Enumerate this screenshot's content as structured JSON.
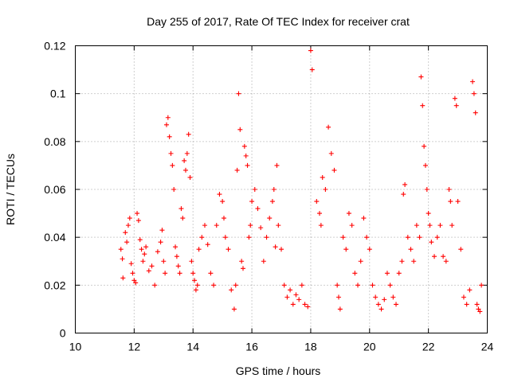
{
  "chart_data": {
    "type": "scatter",
    "title": "Day 255 of 2017, Rate Of TEC Index for receiver crat",
    "xlabel": "GPS time / hours",
    "ylabel": "ROTI / TECUs",
    "xlim": [
      10,
      24
    ],
    "ylim": [
      0,
      0.12
    ],
    "xticks": [
      10,
      12,
      14,
      16,
      18,
      20,
      22,
      24
    ],
    "yticks": [
      0,
      0.02,
      0.04,
      0.06,
      0.08,
      0.1,
      0.12
    ],
    "xtick_labels": [
      "10",
      "12",
      "14",
      "16",
      "18",
      "20",
      "22",
      "24"
    ],
    "ytick_labels": [
      "0",
      "0.02",
      "0.04",
      "0.06",
      "0.08",
      "0.1",
      "0.12"
    ],
    "grid": true,
    "marker": "+",
    "color": "#ff0000",
    "series": [
      {
        "points": [
          [
            11.55,
            0.035
          ],
          [
            11.6,
            0.031
          ],
          [
            11.62,
            0.023
          ],
          [
            11.7,
            0.042
          ],
          [
            11.75,
            0.038
          ],
          [
            11.8,
            0.045
          ],
          [
            11.85,
            0.048
          ],
          [
            11.9,
            0.029
          ],
          [
            11.95,
            0.025
          ],
          [
            12.0,
            0.022
          ],
          [
            12.05,
            0.021
          ],
          [
            12.1,
            0.05
          ],
          [
            12.15,
            0.047
          ],
          [
            12.2,
            0.039
          ],
          [
            12.25,
            0.035
          ],
          [
            12.3,
            0.03
          ],
          [
            12.35,
            0.033
          ],
          [
            12.4,
            0.036
          ],
          [
            12.5,
            0.026
          ],
          [
            12.6,
            0.028
          ],
          [
            12.7,
            0.02
          ],
          [
            12.8,
            0.034
          ],
          [
            12.9,
            0.038
          ],
          [
            12.95,
            0.043
          ],
          [
            13.0,
            0.03
          ],
          [
            13.05,
            0.025
          ],
          [
            13.1,
            0.087
          ],
          [
            13.15,
            0.09
          ],
          [
            13.2,
            0.082
          ],
          [
            13.25,
            0.075
          ],
          [
            13.3,
            0.07
          ],
          [
            13.35,
            0.06
          ],
          [
            13.4,
            0.036
          ],
          [
            13.45,
            0.032
          ],
          [
            13.5,
            0.028
          ],
          [
            13.55,
            0.025
          ],
          [
            13.6,
            0.052
          ],
          [
            13.65,
            0.048
          ],
          [
            13.7,
            0.072
          ],
          [
            13.75,
            0.068
          ],
          [
            13.8,
            0.075
          ],
          [
            13.85,
            0.083
          ],
          [
            13.9,
            0.065
          ],
          [
            13.95,
            0.03
          ],
          [
            14.0,
            0.025
          ],
          [
            14.05,
            0.022
          ],
          [
            14.1,
            0.018
          ],
          [
            14.15,
            0.02
          ],
          [
            14.2,
            0.035
          ],
          [
            14.3,
            0.04
          ],
          [
            14.4,
            0.045
          ],
          [
            14.5,
            0.037
          ],
          [
            14.6,
            0.025
          ],
          [
            14.7,
            0.02
          ],
          [
            14.8,
            0.045
          ],
          [
            14.9,
            0.058
          ],
          [
            15.0,
            0.055
          ],
          [
            15.05,
            0.048
          ],
          [
            15.1,
            0.04
          ],
          [
            15.2,
            0.035
          ],
          [
            15.3,
            0.018
          ],
          [
            15.4,
            0.01
          ],
          [
            15.45,
            0.02
          ],
          [
            15.5,
            0.068
          ],
          [
            15.55,
            0.1
          ],
          [
            15.6,
            0.085
          ],
          [
            15.65,
            0.03
          ],
          [
            15.7,
            0.027
          ],
          [
            15.75,
            0.078
          ],
          [
            15.8,
            0.074
          ],
          [
            15.85,
            0.07
          ],
          [
            15.9,
            0.04
          ],
          [
            15.95,
            0.045
          ],
          [
            16.0,
            0.055
          ],
          [
            16.1,
            0.06
          ],
          [
            16.2,
            0.052
          ],
          [
            16.3,
            0.044
          ],
          [
            16.4,
            0.03
          ],
          [
            16.5,
            0.04
          ],
          [
            16.6,
            0.048
          ],
          [
            16.7,
            0.055
          ],
          [
            16.75,
            0.06
          ],
          [
            16.8,
            0.036
          ],
          [
            16.85,
            0.07
          ],
          [
            16.9,
            0.045
          ],
          [
            17.0,
            0.035
          ],
          [
            17.1,
            0.02
          ],
          [
            17.2,
            0.015
          ],
          [
            17.3,
            0.018
          ],
          [
            17.4,
            0.012
          ],
          [
            17.5,
            0.016
          ],
          [
            17.6,
            0.014
          ],
          [
            17.7,
            0.02
          ],
          [
            17.8,
            0.012
          ],
          [
            17.9,
            0.011
          ],
          [
            18.0,
            0.118
          ],
          [
            18.05,
            0.11
          ],
          [
            18.2,
            0.055
          ],
          [
            18.3,
            0.05
          ],
          [
            18.35,
            0.045
          ],
          [
            18.4,
            0.065
          ],
          [
            18.5,
            0.06
          ],
          [
            18.6,
            0.086
          ],
          [
            18.7,
            0.075
          ],
          [
            18.8,
            0.068
          ],
          [
            18.9,
            0.02
          ],
          [
            18.95,
            0.015
          ],
          [
            19.0,
            0.01
          ],
          [
            19.1,
            0.04
          ],
          [
            19.2,
            0.035
          ],
          [
            19.3,
            0.05
          ],
          [
            19.4,
            0.045
          ],
          [
            19.5,
            0.025
          ],
          [
            19.6,
            0.02
          ],
          [
            19.7,
            0.03
          ],
          [
            19.8,
            0.048
          ],
          [
            19.9,
            0.04
          ],
          [
            20.0,
            0.035
          ],
          [
            20.1,
            0.02
          ],
          [
            20.2,
            0.015
          ],
          [
            20.3,
            0.012
          ],
          [
            20.4,
            0.01
          ],
          [
            20.5,
            0.014
          ],
          [
            20.6,
            0.025
          ],
          [
            20.7,
            0.02
          ],
          [
            20.8,
            0.015
          ],
          [
            20.9,
            0.012
          ],
          [
            21.0,
            0.025
          ],
          [
            21.1,
            0.03
          ],
          [
            21.15,
            0.058
          ],
          [
            21.2,
            0.062
          ],
          [
            21.3,
            0.04
          ],
          [
            21.4,
            0.035
          ],
          [
            21.5,
            0.03
          ],
          [
            21.6,
            0.045
          ],
          [
            21.7,
            0.04
          ],
          [
            21.75,
            0.107
          ],
          [
            21.8,
            0.095
          ],
          [
            21.85,
            0.078
          ],
          [
            21.9,
            0.07
          ],
          [
            21.95,
            0.06
          ],
          [
            22.0,
            0.05
          ],
          [
            22.05,
            0.045
          ],
          [
            22.1,
            0.038
          ],
          [
            22.2,
            0.032
          ],
          [
            22.3,
            0.04
          ],
          [
            22.4,
            0.045
          ],
          [
            22.5,
            0.032
          ],
          [
            22.6,
            0.03
          ],
          [
            22.7,
            0.06
          ],
          [
            22.75,
            0.055
          ],
          [
            22.8,
            0.045
          ],
          [
            22.9,
            0.098
          ],
          [
            22.95,
            0.095
          ],
          [
            23.0,
            0.055
          ],
          [
            23.1,
            0.035
          ],
          [
            23.2,
            0.015
          ],
          [
            23.3,
            0.012
          ],
          [
            23.4,
            0.018
          ],
          [
            23.5,
            0.105
          ],
          [
            23.55,
            0.1
          ],
          [
            23.6,
            0.092
          ],
          [
            23.65,
            0.012
          ],
          [
            23.7,
            0.01
          ],
          [
            23.75,
            0.009
          ],
          [
            23.8,
            0.02
          ]
        ]
      }
    ]
  }
}
